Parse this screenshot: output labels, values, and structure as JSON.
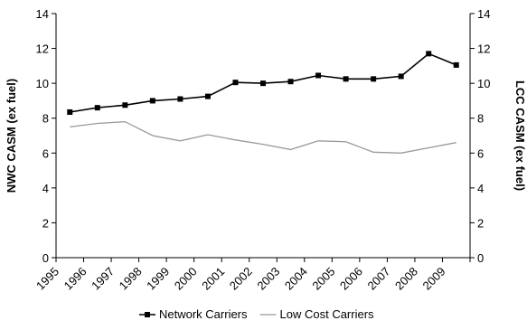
{
  "chart_data": {
    "type": "line",
    "categories": [
      "1995",
      "1996",
      "1997",
      "1998",
      "1999",
      "2000",
      "2001",
      "2002",
      "2003",
      "2004",
      "2005",
      "2006",
      "2007",
      "2008",
      "2009"
    ],
    "series": [
      {
        "name": "Network Carriers",
        "axis": "left",
        "color": "#000000",
        "marker": "square",
        "values": [
          8.35,
          8.6,
          8.75,
          9.0,
          9.1,
          9.25,
          10.05,
          10.0,
          10.1,
          10.45,
          10.25,
          10.25,
          10.4,
          11.7,
          11.05
        ]
      },
      {
        "name": "Low Cost Carriers",
        "axis": "right",
        "color": "#999999",
        "marker": "none",
        "values": [
          7.5,
          7.7,
          7.8,
          7.0,
          6.7,
          7.05,
          6.75,
          6.5,
          6.2,
          6.7,
          6.65,
          6.05,
          6.0,
          6.3,
          6.6
        ]
      }
    ],
    "ylabel": "NWC CASM (ex fuel)",
    "y2label": "LCC CASM (ex fuel)",
    "ylim": [
      0,
      14
    ],
    "y2lim": [
      0,
      14
    ],
    "yticks": [
      "0",
      "2",
      "4",
      "6",
      "8",
      "10",
      "12",
      "14"
    ],
    "y2ticks": [
      "0",
      "2",
      "4",
      "6",
      "8",
      "10",
      "12",
      "14"
    ],
    "grid": false,
    "legend_position": "bottom"
  }
}
